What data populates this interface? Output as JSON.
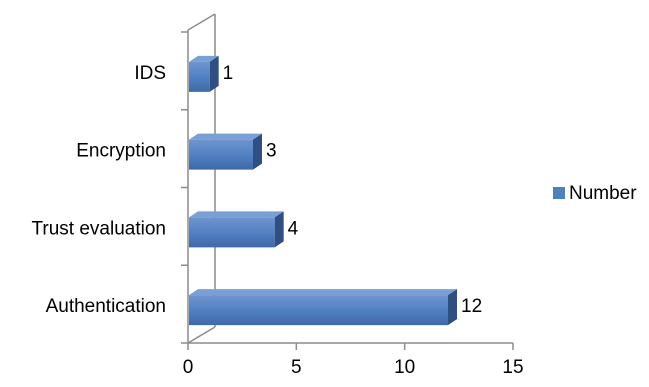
{
  "chart_data": {
    "type": "bar",
    "orientation": "horizontal",
    "style": "3d",
    "categories": [
      "IDS",
      "Encryption",
      "Trust evaluation",
      "Authentication"
    ],
    "series": [
      {
        "name": "Number",
        "values": [
          1,
          3,
          4,
          12
        ]
      }
    ],
    "data_labels": [
      "1",
      "3",
      "4",
      "12"
    ],
    "x_ticks": [
      "0",
      "5",
      "10",
      "15"
    ],
    "xlim": [
      0,
      15
    ],
    "grid": false,
    "legend_position": "right",
    "colors": {
      "bar_front": "#4f81bd",
      "bar_top": "#7a9fd4",
      "bar_side": "#2f4f82",
      "axis": "#8c8c8c"
    }
  }
}
